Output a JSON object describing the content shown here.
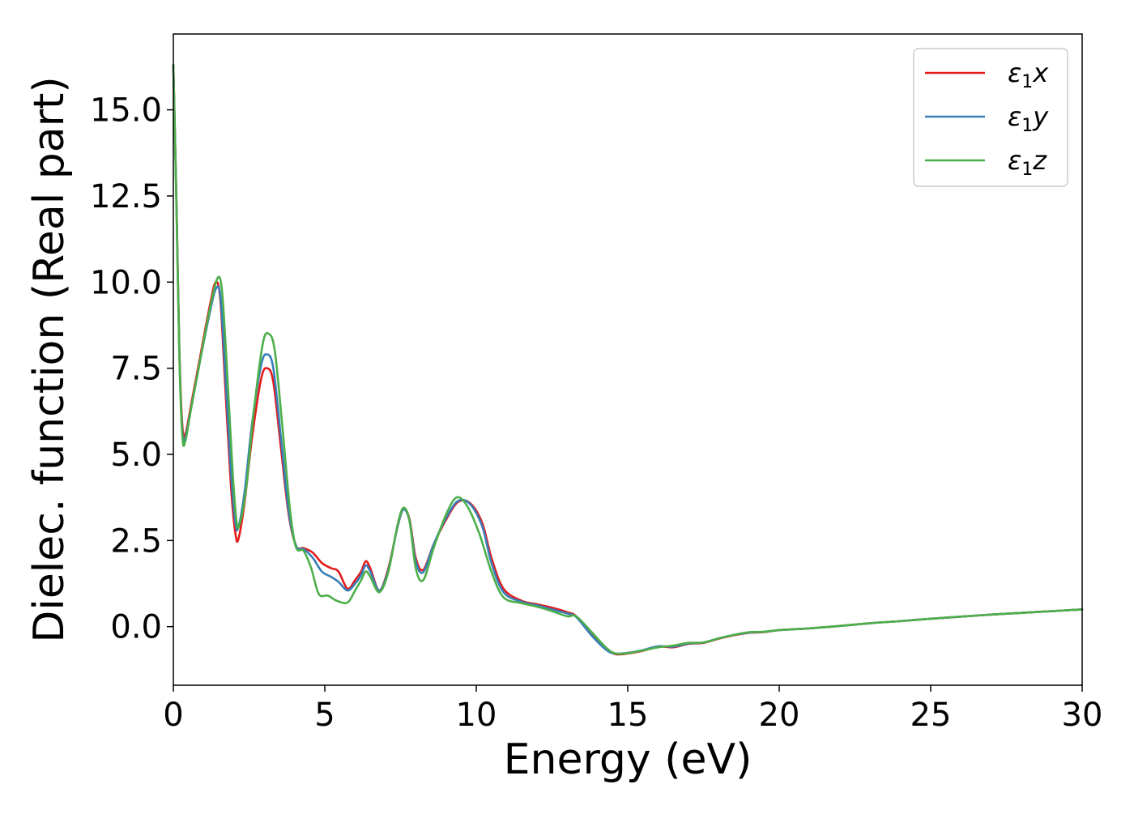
{
  "chart_data": {
    "type": "line",
    "title": "",
    "xlabel": "Energy (eV)",
    "ylabel": "Dielec. function (Real part)",
    "xlim": [
      0,
      30
    ],
    "ylim": [
      -1.7,
      17.2
    ],
    "xticks": [
      0,
      5,
      10,
      15,
      20,
      25,
      30
    ],
    "xtick_labels": [
      "0",
      "5",
      "10",
      "15",
      "20",
      "25",
      "30"
    ],
    "yticks": [
      0.0,
      2.5,
      5.0,
      7.5,
      10.0,
      12.5,
      15.0
    ],
    "ytick_labels": [
      "0.0",
      "2.5",
      "5.0",
      "7.5",
      "10.0",
      "12.5",
      "15.0"
    ],
    "grid": false,
    "legend_position": "upper right",
    "series": [
      {
        "name": "ε₁x",
        "legend_base": "ε",
        "legend_sub": "1",
        "legend_var": "x",
        "color": "#e41a1c",
        "points": [
          [
            0,
            16.3
          ],
          [
            0.1,
            12.5
          ],
          [
            0.2,
            8.0
          ],
          [
            0.3,
            5.8
          ],
          [
            0.4,
            5.6
          ],
          [
            0.6,
            6.5
          ],
          [
            0.9,
            7.9
          ],
          [
            1.2,
            9.3
          ],
          [
            1.4,
            10.0
          ],
          [
            1.55,
            9.5
          ],
          [
            1.7,
            7.2
          ],
          [
            1.9,
            4.1
          ],
          [
            2.05,
            2.7
          ],
          [
            2.15,
            2.55
          ],
          [
            2.35,
            3.6
          ],
          [
            2.6,
            5.5
          ],
          [
            2.9,
            7.2
          ],
          [
            3.1,
            7.5
          ],
          [
            3.3,
            7.1
          ],
          [
            3.55,
            5.2
          ],
          [
            3.8,
            3.3
          ],
          [
            4.05,
            2.35
          ],
          [
            4.3,
            2.28
          ],
          [
            4.6,
            2.15
          ],
          [
            4.9,
            1.85
          ],
          [
            5.2,
            1.7
          ],
          [
            5.45,
            1.6
          ],
          [
            5.75,
            1.1
          ],
          [
            6.0,
            1.35
          ],
          [
            6.2,
            1.6
          ],
          [
            6.35,
            1.9
          ],
          [
            6.5,
            1.7
          ],
          [
            6.8,
            1.05
          ],
          [
            7.1,
            1.7
          ],
          [
            7.4,
            2.9
          ],
          [
            7.6,
            3.42
          ],
          [
            7.8,
            3.1
          ],
          [
            8.0,
            2.0
          ],
          [
            8.25,
            1.65
          ],
          [
            8.6,
            2.4
          ],
          [
            9.0,
            3.1
          ],
          [
            9.4,
            3.62
          ],
          [
            9.8,
            3.58
          ],
          [
            10.2,
            3.0
          ],
          [
            10.5,
            2.0
          ],
          [
            10.9,
            1.1
          ],
          [
            11.5,
            0.75
          ],
          [
            12.0,
            0.65
          ],
          [
            12.5,
            0.55
          ],
          [
            13.0,
            0.42
          ],
          [
            13.3,
            0.3
          ],
          [
            13.8,
            -0.2
          ],
          [
            14.3,
            -0.65
          ],
          [
            14.6,
            -0.8
          ],
          [
            15.0,
            -0.78
          ],
          [
            15.5,
            -0.7
          ],
          [
            16.0,
            -0.58
          ],
          [
            16.5,
            -0.6
          ],
          [
            17.0,
            -0.5
          ],
          [
            17.5,
            -0.47
          ],
          [
            18.0,
            -0.35
          ],
          [
            18.5,
            -0.25
          ],
          [
            19.0,
            -0.18
          ],
          [
            19.5,
            -0.16
          ],
          [
            20.0,
            -0.1
          ],
          [
            21.0,
            -0.05
          ],
          [
            22.0,
            0.02
          ],
          [
            23.0,
            0.1
          ],
          [
            24.0,
            0.16
          ],
          [
            25.0,
            0.23
          ],
          [
            26.0,
            0.29
          ],
          [
            27.0,
            0.35
          ],
          [
            28.0,
            0.4
          ],
          [
            29.0,
            0.45
          ],
          [
            30.0,
            0.5
          ]
        ]
      },
      {
        "name": "ε₁y",
        "legend_base": "ε",
        "legend_sub": "1",
        "legend_var": "y",
        "color": "#377eb8",
        "points": [
          [
            0,
            16.3
          ],
          [
            0.1,
            12.4
          ],
          [
            0.2,
            7.9
          ],
          [
            0.3,
            5.6
          ],
          [
            0.4,
            5.5
          ],
          [
            0.6,
            6.4
          ],
          [
            0.9,
            7.8
          ],
          [
            1.2,
            9.1
          ],
          [
            1.4,
            9.8
          ],
          [
            1.55,
            9.6
          ],
          [
            1.7,
            7.6
          ],
          [
            1.9,
            4.5
          ],
          [
            2.05,
            3.0
          ],
          [
            2.15,
            2.9
          ],
          [
            2.35,
            3.9
          ],
          [
            2.6,
            5.9
          ],
          [
            2.9,
            7.6
          ],
          [
            3.1,
            7.9
          ],
          [
            3.3,
            7.5
          ],
          [
            3.55,
            5.5
          ],
          [
            3.8,
            3.4
          ],
          [
            4.05,
            2.35
          ],
          [
            4.3,
            2.25
          ],
          [
            4.6,
            2.0
          ],
          [
            4.9,
            1.6
          ],
          [
            5.2,
            1.45
          ],
          [
            5.45,
            1.3
          ],
          [
            5.75,
            1.05
          ],
          [
            6.0,
            1.25
          ],
          [
            6.2,
            1.5
          ],
          [
            6.35,
            1.78
          ],
          [
            6.5,
            1.6
          ],
          [
            6.8,
            1.05
          ],
          [
            7.1,
            1.65
          ],
          [
            7.4,
            2.9
          ],
          [
            7.6,
            3.4
          ],
          [
            7.8,
            3.05
          ],
          [
            8.0,
            1.9
          ],
          [
            8.25,
            1.58
          ],
          [
            8.6,
            2.4
          ],
          [
            9.0,
            3.15
          ],
          [
            9.4,
            3.65
          ],
          [
            9.8,
            3.55
          ],
          [
            10.2,
            2.9
          ],
          [
            10.5,
            1.85
          ],
          [
            10.9,
            1.0
          ],
          [
            11.5,
            0.72
          ],
          [
            12.0,
            0.62
          ],
          [
            12.5,
            0.5
          ],
          [
            13.0,
            0.38
          ],
          [
            13.3,
            0.28
          ],
          [
            13.8,
            -0.25
          ],
          [
            14.3,
            -0.68
          ],
          [
            14.6,
            -0.78
          ],
          [
            15.0,
            -0.76
          ],
          [
            15.5,
            -0.68
          ],
          [
            16.0,
            -0.57
          ],
          [
            16.5,
            -0.58
          ],
          [
            17.0,
            -0.49
          ],
          [
            17.5,
            -0.46
          ],
          [
            18.0,
            -0.34
          ],
          [
            18.5,
            -0.24
          ],
          [
            19.0,
            -0.17
          ],
          [
            19.5,
            -0.15
          ],
          [
            20.0,
            -0.1
          ],
          [
            21.0,
            -0.05
          ],
          [
            22.0,
            0.02
          ],
          [
            23.0,
            0.1
          ],
          [
            24.0,
            0.16
          ],
          [
            25.0,
            0.23
          ],
          [
            26.0,
            0.29
          ],
          [
            27.0,
            0.35
          ],
          [
            28.0,
            0.4
          ],
          [
            29.0,
            0.45
          ],
          [
            30.0,
            0.5
          ]
        ]
      },
      {
        "name": "ε₁z",
        "legend_base": "ε",
        "legend_sub": "1",
        "legend_var": "z",
        "color": "#4daf4a",
        "points": [
          [
            0,
            16.3
          ],
          [
            0.1,
            12.3
          ],
          [
            0.2,
            7.8
          ],
          [
            0.3,
            5.5
          ],
          [
            0.4,
            5.4
          ],
          [
            0.6,
            6.4
          ],
          [
            0.9,
            7.8
          ],
          [
            1.2,
            9.2
          ],
          [
            1.45,
            10.1
          ],
          [
            1.6,
            9.8
          ],
          [
            1.75,
            7.8
          ],
          [
            1.95,
            4.6
          ],
          [
            2.08,
            3.1
          ],
          [
            2.18,
            2.95
          ],
          [
            2.4,
            4.0
          ],
          [
            2.65,
            6.2
          ],
          [
            2.95,
            8.2
          ],
          [
            3.15,
            8.5
          ],
          [
            3.35,
            8.0
          ],
          [
            3.6,
            5.8
          ],
          [
            3.85,
            3.4
          ],
          [
            4.05,
            2.3
          ],
          [
            4.3,
            2.2
          ],
          [
            4.55,
            1.7
          ],
          [
            4.8,
            0.95
          ],
          [
            5.1,
            0.9
          ],
          [
            5.4,
            0.75
          ],
          [
            5.75,
            0.7
          ],
          [
            6.0,
            1.05
          ],
          [
            6.2,
            1.35
          ],
          [
            6.35,
            1.6
          ],
          [
            6.5,
            1.45
          ],
          [
            6.8,
            1.0
          ],
          [
            7.1,
            1.6
          ],
          [
            7.4,
            2.95
          ],
          [
            7.6,
            3.45
          ],
          [
            7.8,
            3.05
          ],
          [
            8.0,
            1.7
          ],
          [
            8.25,
            1.35
          ],
          [
            8.6,
            2.3
          ],
          [
            9.0,
            3.25
          ],
          [
            9.35,
            3.75
          ],
          [
            9.7,
            3.5
          ],
          [
            10.1,
            2.7
          ],
          [
            10.5,
            1.6
          ],
          [
            10.9,
            0.85
          ],
          [
            11.5,
            0.68
          ],
          [
            12.0,
            0.58
          ],
          [
            12.5,
            0.45
          ],
          [
            13.0,
            0.3
          ],
          [
            13.3,
            0.3
          ],
          [
            13.8,
            -0.15
          ],
          [
            14.3,
            -0.62
          ],
          [
            14.6,
            -0.78
          ],
          [
            15.0,
            -0.77
          ],
          [
            15.5,
            -0.69
          ],
          [
            16.0,
            -0.6
          ],
          [
            16.5,
            -0.55
          ],
          [
            17.0,
            -0.47
          ],
          [
            17.5,
            -0.46
          ],
          [
            18.0,
            -0.34
          ],
          [
            18.5,
            -0.24
          ],
          [
            19.0,
            -0.16
          ],
          [
            19.5,
            -0.15
          ],
          [
            20.0,
            -0.1
          ],
          [
            21.0,
            -0.05
          ],
          [
            22.0,
            0.02
          ],
          [
            23.0,
            0.1
          ],
          [
            24.0,
            0.16
          ],
          [
            25.0,
            0.23
          ],
          [
            26.0,
            0.29
          ],
          [
            27.0,
            0.35
          ],
          [
            28.0,
            0.4
          ],
          [
            29.0,
            0.45
          ],
          [
            30.0,
            0.5
          ]
        ]
      }
    ]
  }
}
